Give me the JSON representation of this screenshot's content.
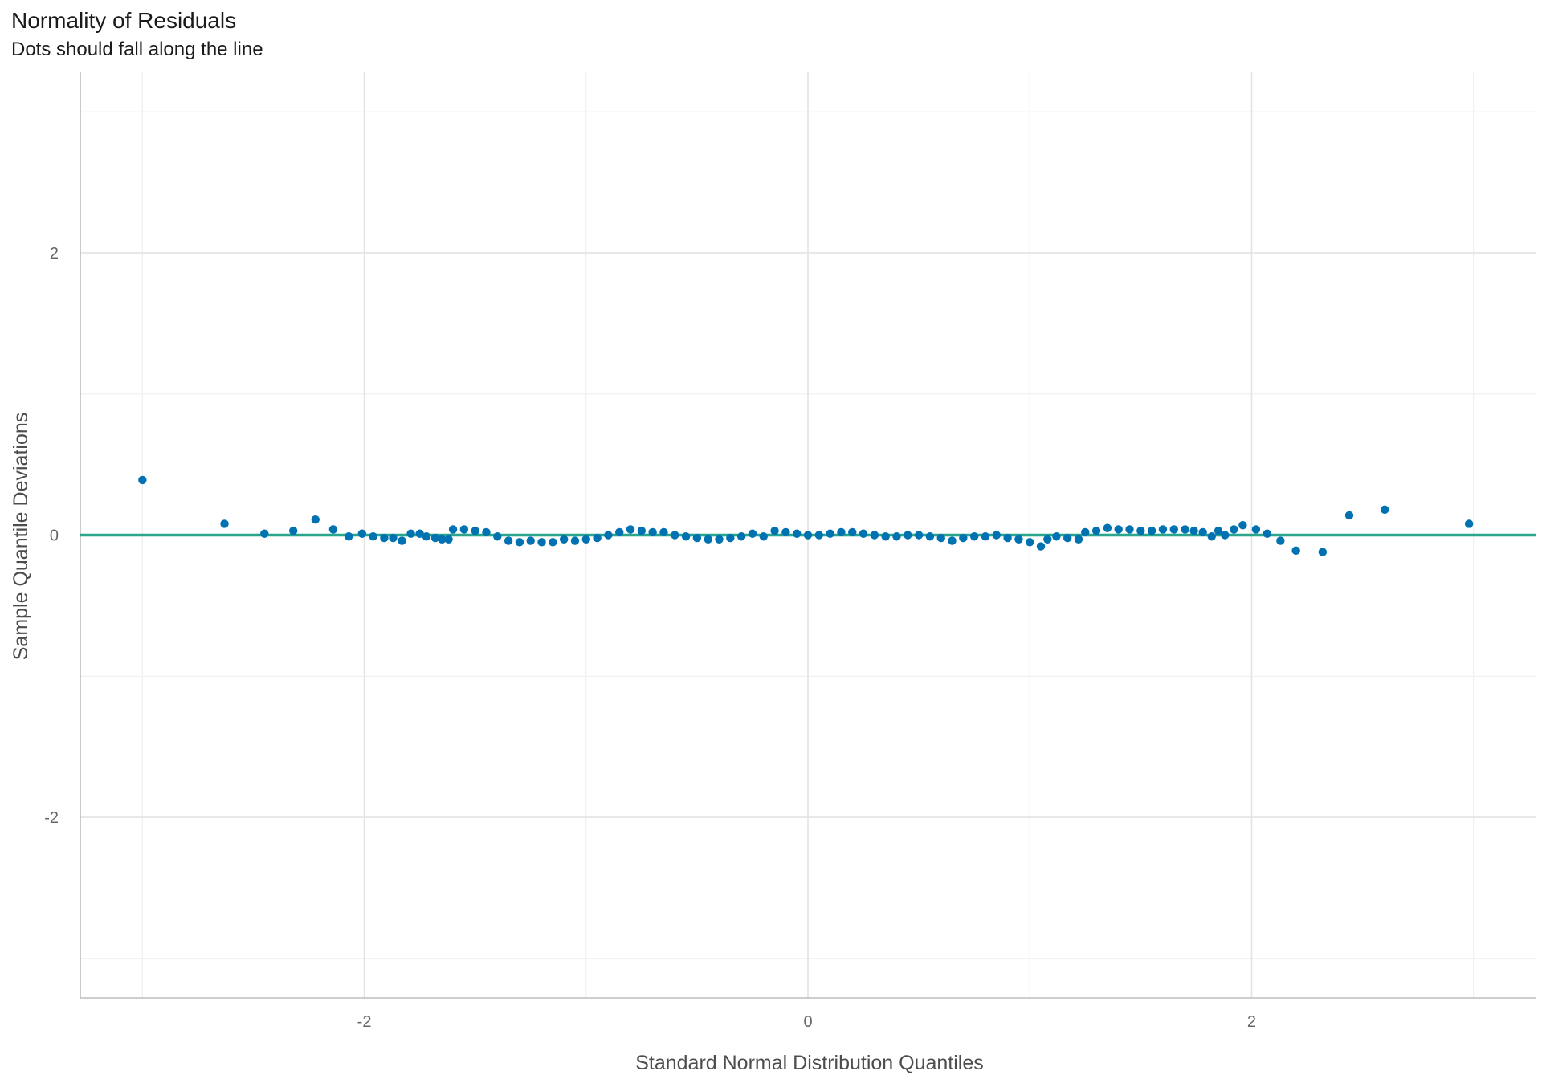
{
  "chart_data": {
    "type": "scatter",
    "title": "Normality of Residuals",
    "subtitle": "Dots should fall along the line",
    "xlabel": "Standard Normal Distribution Quantiles",
    "ylabel": "Sample Quantile Deviations",
    "xlim": [
      -3.28,
      3.28
    ],
    "ylim": [
      -3.28,
      3.28
    ],
    "x_ticks": [
      -2,
      0,
      2
    ],
    "x_tick_labels": [
      "-2",
      "0",
      "2"
    ],
    "y_ticks": [
      -2,
      0,
      2
    ],
    "y_tick_labels": [
      "-2",
      "0",
      "2"
    ],
    "grid": true,
    "reference_line": {
      "y": 0,
      "color": "#2ca58d"
    },
    "point_color": "#0072b2",
    "series": [
      {
        "points": [
          [
            -3.0,
            0.39
          ],
          [
            -2.63,
            0.08
          ],
          [
            -2.45,
            0.01
          ],
          [
            -2.32,
            0.03
          ],
          [
            -2.22,
            0.11
          ],
          [
            -2.14,
            0.04
          ],
          [
            -2.07,
            -0.01
          ],
          [
            -2.01,
            0.01
          ],
          [
            -1.96,
            -0.01
          ],
          [
            -1.91,
            -0.02
          ],
          [
            -1.87,
            -0.02
          ],
          [
            -1.83,
            -0.04
          ],
          [
            -1.79,
            0.01
          ],
          [
            -1.75,
            0.01
          ],
          [
            -1.72,
            -0.01
          ],
          [
            -1.68,
            -0.02
          ],
          [
            -1.65,
            -0.03
          ],
          [
            -1.62,
            -0.03
          ],
          [
            -1.6,
            0.04
          ],
          [
            -1.55,
            0.04
          ],
          [
            -1.5,
            0.03
          ],
          [
            -1.45,
            0.02
          ],
          [
            -1.4,
            -0.01
          ],
          [
            -1.35,
            -0.04
          ],
          [
            -1.3,
            -0.05
          ],
          [
            -1.25,
            -0.04
          ],
          [
            -1.2,
            -0.05
          ],
          [
            -1.15,
            -0.05
          ],
          [
            -1.1,
            -0.03
          ],
          [
            -1.05,
            -0.04
          ],
          [
            -1.0,
            -0.03
          ],
          [
            -0.95,
            -0.02
          ],
          [
            -0.9,
            0.0
          ],
          [
            -0.85,
            0.02
          ],
          [
            -0.8,
            0.04
          ],
          [
            -0.75,
            0.03
          ],
          [
            -0.7,
            0.02
          ],
          [
            -0.65,
            0.02
          ],
          [
            -0.6,
            0.0
          ],
          [
            -0.55,
            -0.01
          ],
          [
            -0.5,
            -0.02
          ],
          [
            -0.45,
            -0.03
          ],
          [
            -0.4,
            -0.03
          ],
          [
            -0.35,
            -0.02
          ],
          [
            -0.3,
            -0.01
          ],
          [
            -0.25,
            0.01
          ],
          [
            -0.2,
            -0.01
          ],
          [
            -0.15,
            0.03
          ],
          [
            -0.1,
            0.02
          ],
          [
            -0.05,
            0.01
          ],
          [
            0.0,
            0.0
          ],
          [
            0.05,
            0.0
          ],
          [
            0.1,
            0.01
          ],
          [
            0.15,
            0.02
          ],
          [
            0.2,
            0.02
          ],
          [
            0.25,
            0.01
          ],
          [
            0.3,
            0.0
          ],
          [
            0.35,
            -0.01
          ],
          [
            0.4,
            -0.01
          ],
          [
            0.45,
            0.0
          ],
          [
            0.5,
            0.0
          ],
          [
            0.55,
            -0.01
          ],
          [
            0.6,
            -0.02
          ],
          [
            0.65,
            -0.04
          ],
          [
            0.7,
            -0.02
          ],
          [
            0.75,
            -0.01
          ],
          [
            0.8,
            -0.01
          ],
          [
            0.85,
            0.0
          ],
          [
            0.9,
            -0.02
          ],
          [
            0.95,
            -0.03
          ],
          [
            1.0,
            -0.05
          ],
          [
            1.05,
            -0.08
          ],
          [
            1.08,
            -0.03
          ],
          [
            1.12,
            -0.01
          ],
          [
            1.17,
            -0.02
          ],
          [
            1.22,
            -0.03
          ],
          [
            1.25,
            0.02
          ],
          [
            1.3,
            0.03
          ],
          [
            1.35,
            0.05
          ],
          [
            1.4,
            0.04
          ],
          [
            1.45,
            0.04
          ],
          [
            1.5,
            0.03
          ],
          [
            1.55,
            0.03
          ],
          [
            1.6,
            0.04
          ],
          [
            1.65,
            0.04
          ],
          [
            1.7,
            0.04
          ],
          [
            1.74,
            0.03
          ],
          [
            1.78,
            0.02
          ],
          [
            1.82,
            -0.01
          ],
          [
            1.85,
            0.03
          ],
          [
            1.88,
            0.0
          ],
          [
            1.92,
            0.04
          ],
          [
            1.96,
            0.07
          ],
          [
            2.02,
            0.04
          ],
          [
            2.07,
            0.01
          ],
          [
            2.13,
            -0.04
          ],
          [
            2.2,
            -0.11
          ],
          [
            2.32,
            -0.12
          ],
          [
            2.44,
            0.14
          ],
          [
            2.6,
            0.18
          ],
          [
            2.98,
            0.08
          ]
        ]
      }
    ]
  }
}
